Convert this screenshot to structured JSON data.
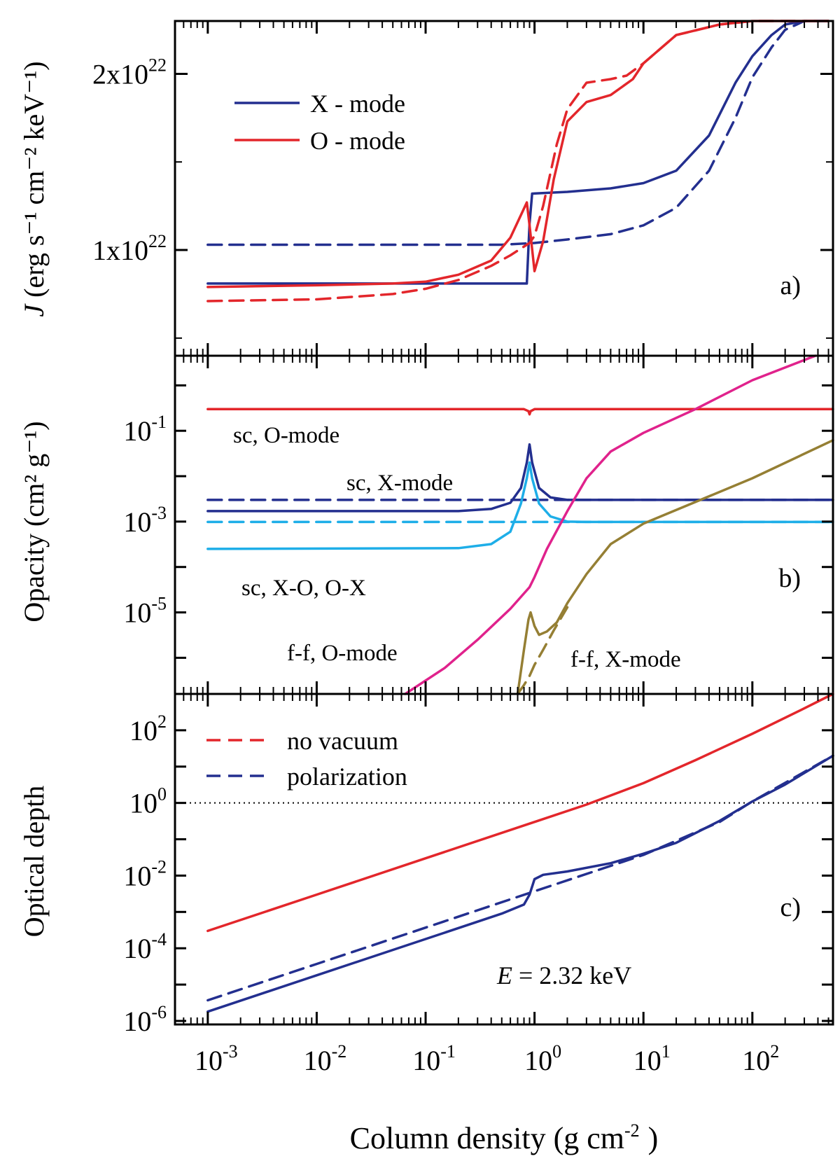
{
  "chart_data": [
    {
      "panel": "a)",
      "type": "line",
      "yscale": "linear",
      "ylabel_italic": "J",
      "ylabel": "(erg s⁻¹ cm⁻² keV⁻¹)",
      "xlim": [
        0.0005,
        550
      ],
      "ylim": [
        4e+21,
        2.3e+22
      ],
      "yticks": [
        {
          "value": 1e+22,
          "mant": "1x10",
          "exp": "22"
        },
        {
          "value": 2e+22,
          "mant": "2x10",
          "exp": "22"
        }
      ],
      "legend": {
        "position": "top-left",
        "entries": [
          {
            "label": "X - mode",
            "color": "#232F8F"
          },
          {
            "label": "O - mode",
            "color": "#E3262B"
          }
        ]
      },
      "series": [
        {
          "name": "X-mode",
          "color": "#232F8F",
          "dash": false,
          "x": [
            0.001,
            0.01,
            0.1,
            0.5,
            0.85,
            0.9,
            0.95,
            2,
            5,
            10,
            20,
            40,
            70,
            100,
            150,
            200,
            300,
            500
          ],
          "y": [
            8.1e+21,
            8.1e+21,
            8.1e+21,
            8.1e+21,
            8.1e+21,
            1.15e+22,
            1.32e+22,
            1.33e+22,
            1.35e+22,
            1.38e+22,
            1.45e+22,
            1.65e+22,
            1.95e+22,
            2.1e+22,
            2.22e+22,
            2.28e+22,
            2.3e+22,
            2.3e+22
          ]
        },
        {
          "name": "X-mode no vacuum polarization",
          "color": "#232F8F",
          "dash": true,
          "x": [
            0.001,
            0.1,
            0.5,
            1,
            2,
            5,
            10,
            20,
            40,
            70,
            100,
            150,
            200,
            300,
            500
          ],
          "y": [
            1.03e+22,
            1.03e+22,
            1.03e+22,
            1.04e+22,
            1.06e+22,
            1.09e+22,
            1.14e+22,
            1.24e+22,
            1.45e+22,
            1.75e+22,
            1.98e+22,
            2.15e+22,
            2.25e+22,
            2.3e+22,
            2.3e+22
          ]
        },
        {
          "name": "O-mode",
          "color": "#E3262B",
          "dash": false,
          "x": [
            0.001,
            0.01,
            0.05,
            0.1,
            0.2,
            0.4,
            0.6,
            0.85,
            0.9,
            1.0,
            1.2,
            1.5,
            2,
            3,
            5,
            8,
            10,
            20,
            50,
            100,
            200,
            500
          ],
          "y": [
            7.9e+21,
            8e+21,
            8.1e+21,
            8.2e+21,
            8.6e+21,
            9.4e+21,
            1.07e+22,
            1.27e+22,
            1.14e+22,
            8.8e+21,
            1.05e+22,
            1.4e+22,
            1.73e+22,
            1.84e+22,
            1.88e+22,
            1.97e+22,
            2.06e+22,
            2.22e+22,
            2.28e+22,
            2.3e+22,
            2.3e+22,
            2.3e+22
          ]
        },
        {
          "name": "O-mode no vacuum polarization",
          "color": "#E3262B",
          "dash": true,
          "x": [
            0.001,
            0.01,
            0.05,
            0.1,
            0.2,
            0.4,
            0.6,
            0.9,
            1.0,
            1.2,
            1.6,
            2,
            3,
            5,
            7,
            10,
            20,
            50,
            100,
            500
          ],
          "y": [
            7.1e+21,
            7.2e+21,
            7.5e+21,
            7.8e+21,
            8.3e+21,
            9.1e+21,
            9.7e+21,
            1.04e+22,
            1.08e+22,
            1.25e+22,
            1.6e+22,
            1.8e+22,
            1.95e+22,
            1.97e+22,
            1.99e+22,
            2.06e+22,
            2.22e+22,
            2.28e+22,
            2.3e+22,
            2.3e+22
          ]
        }
      ]
    },
    {
      "panel": "b)",
      "type": "line",
      "yscale": "log",
      "ylabel": "Opacity (cm² g⁻¹)",
      "xlim": [
        0.0005,
        550
      ],
      "ylim": [
        1.6e-07,
        4.5
      ],
      "yticks": [
        {
          "value": 0.1,
          "mant": "10",
          "exp": "-1"
        },
        {
          "value": 0.001,
          "mant": "10",
          "exp": "-3"
        },
        {
          "value": 1e-05,
          "mant": "10",
          "exp": "-5"
        }
      ],
      "annotations": [
        {
          "text": "sc, O-mode",
          "color": "#E3262B"
        },
        {
          "text": "sc, X-mode",
          "color": "#232F8F"
        },
        {
          "text": "sc, X-O, O-X",
          "color": "#1EAEE8"
        },
        {
          "text": "f-f, O-mode",
          "color": "#E0228C"
        },
        {
          "text": "f-f, X-mode",
          "color": "#957F34"
        }
      ],
      "series": [
        {
          "name": "sc, O-mode",
          "color": "#E3262B",
          "dash": false,
          "x": [
            0.001,
            0.8,
            0.88,
            0.9,
            0.92,
            1.0,
            550
          ],
          "y": [
            0.3,
            0.3,
            0.27,
            0.23,
            0.27,
            0.3,
            0.3
          ]
        },
        {
          "name": "sc, X-mode",
          "color": "#232F8F",
          "dash": false,
          "x": [
            0.001,
            0.2,
            0.4,
            0.6,
            0.75,
            0.85,
            0.9,
            0.95,
            1.1,
            1.4,
            2,
            3,
            550
          ],
          "y": [
            0.0017,
            0.0017,
            0.0019,
            0.0026,
            0.0055,
            0.02,
            0.05,
            0.02,
            0.0055,
            0.0034,
            0.003,
            0.003,
            0.003
          ]
        },
        {
          "name": "sc, X-mode dashed",
          "color": "#232F8F",
          "dash": true,
          "x": [
            0.001,
            550
          ],
          "y": [
            0.003,
            0.003
          ]
        },
        {
          "name": "sc, X-O, O-X",
          "color": "#1EAEE8",
          "dash": false,
          "x": [
            0.001,
            0.2,
            0.4,
            0.6,
            0.75,
            0.85,
            0.9,
            0.95,
            1.1,
            1.4,
            2,
            3,
            550
          ],
          "y": [
            0.00025,
            0.00026,
            0.00032,
            0.0006,
            0.0025,
            0.009,
            0.02,
            0.009,
            0.0025,
            0.0013,
            0.001,
            0.00098,
            0.00098
          ]
        },
        {
          "name": "sc, X-O, O-X dashed",
          "color": "#1EAEE8",
          "dash": true,
          "x": [
            0.001,
            550
          ],
          "y": [
            0.00098,
            0.00098
          ]
        },
        {
          "name": "f-f, O-mode",
          "color": "#E0228C",
          "dash": false,
          "x": [
            0.065,
            0.15,
            0.3,
            0.6,
            0.9,
            1.0,
            1.3,
            2,
            3,
            5,
            10,
            30,
            100,
            380
          ],
          "y": [
            1.6e-07,
            6e-07,
            2.5e-06,
            1.2e-05,
            3.6e-05,
            6e-05,
            0.00025,
            0.0017,
            0.009,
            0.035,
            0.09,
            0.3,
            1.3,
            4.5
          ]
        },
        {
          "name": "f-f, X-mode",
          "color": "#957F34",
          "dash": false,
          "x": [
            0.7,
            0.8,
            0.88,
            0.92,
            1.0,
            1.1,
            1.3,
            1.6,
            2,
            3,
            5,
            10,
            30,
            100,
            550
          ],
          "y": [
            1.6e-07,
            1.5e-06,
            7e-06,
            1e-05,
            5e-06,
            3.2e-06,
            3.8e-06,
            6e-06,
            1.6e-05,
            7e-05,
            0.00032,
            0.0009,
            0.0027,
            0.009,
            0.062
          ]
        },
        {
          "name": "f-f, X-mode dashed",
          "color": "#957F34",
          "dash": true,
          "x": [
            0.7,
            0.8,
            0.9,
            1.0,
            1.2,
            1.5,
            2
          ],
          "y": [
            1.6e-07,
            2.5e-07,
            4e-07,
            7e-07,
            1.5e-06,
            4e-06,
            1.3e-05
          ]
        }
      ]
    },
    {
      "panel": "c)",
      "type": "line",
      "yscale": "log",
      "ylabel": "Optical depth",
      "xlabel_prefix": "Column density (g cm",
      "xlabel_exp": "-2",
      "xlabel_suffix": ")",
      "xlim": [
        0.0005,
        550
      ],
      "ylim": [
        8e-07,
        1000
      ],
      "xticks": [
        {
          "value": 0.001,
          "mant": "10",
          "exp": "-3"
        },
        {
          "value": 0.01,
          "mant": "10",
          "exp": "-2"
        },
        {
          "value": 0.1,
          "mant": "10",
          "exp": "-1"
        },
        {
          "value": 1,
          "mant": "10",
          "exp": "0"
        },
        {
          "value": 10,
          "mant": "10",
          "exp": "1"
        },
        {
          "value": 100,
          "mant": "10",
          "exp": "2"
        }
      ],
      "yticks": [
        {
          "value": 100,
          "mant": "10",
          "exp": "2"
        },
        {
          "value": 1,
          "mant": "10",
          "exp": "0"
        },
        {
          "value": 0.01,
          "mant": "10",
          "exp": "-2"
        },
        {
          "value": 0.0001,
          "mant": "10",
          "exp": "-4"
        },
        {
          "value": 1e-06,
          "mant": "10",
          "exp": "-6"
        }
      ],
      "reference_line": {
        "y": 1,
        "style": "dotted"
      },
      "legend": {
        "position": "top-left",
        "title": "no vacuum",
        "entries": [
          {
            "label": "no vacuum",
            "color": "#E3262B"
          },
          {
            "label": "polarization",
            "color": "#232F8F"
          }
        ]
      },
      "energy_label": {
        "italic": "E",
        "rest": " = 2.32 keV"
      },
      "series": [
        {
          "name": "O-mode",
          "color": "#E3262B",
          "dash": false,
          "x": [
            0.001,
            0.01,
            0.1,
            1,
            3,
            10,
            30,
            100,
            300,
            550
          ],
          "y": [
            0.0003,
            0.003,
            0.03,
            0.3,
            0.9,
            3.5,
            15,
            80,
            400,
            1000
          ]
        },
        {
          "name": "X-mode",
          "color": "#232F8F",
          "dash": false,
          "x": [
            0.001,
            0.01,
            0.1,
            0.5,
            0.8,
            0.9,
            1.0,
            1.2,
            2,
            5,
            10,
            20,
            50,
            100,
            200,
            550
          ],
          "y": [
            1.8e-06,
            1.8e-05,
            0.00018,
            0.0009,
            0.0016,
            0.003,
            0.008,
            0.0105,
            0.013,
            0.022,
            0.04,
            0.08,
            0.32,
            1.1,
            3.2,
            20
          ]
        },
        {
          "name": "X-mode no vacuum polarization",
          "color": "#232F8F",
          "dash": true,
          "x": [
            0.001,
            0.01,
            0.1,
            1,
            10,
            50,
            100,
            550
          ],
          "y": [
            3.7e-06,
            3.7e-05,
            0.00037,
            0.0037,
            0.037,
            0.3,
            1.1,
            20
          ]
        }
      ]
    }
  ]
}
